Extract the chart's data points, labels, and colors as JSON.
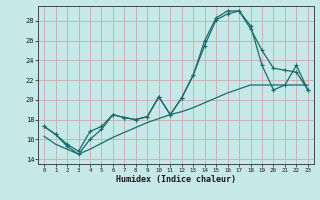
{
  "title": "",
  "xlabel": "Humidex (Indice chaleur)",
  "background_color": "#c6e8e8",
  "grid_color_major": "#c8a0a0",
  "grid_color_minor": "#ddc0c0",
  "line_color": "#1a6b6b",
  "xlim": [
    -0.5,
    23.5
  ],
  "ylim": [
    13.5,
    29.5
  ],
  "yticks": [
    14,
    16,
    18,
    20,
    22,
    24,
    26,
    28
  ],
  "xticks": [
    0,
    1,
    2,
    3,
    4,
    5,
    6,
    7,
    8,
    9,
    10,
    11,
    12,
    13,
    14,
    15,
    16,
    17,
    18,
    19,
    20,
    21,
    22,
    23
  ],
  "line1_x": [
    0,
    1,
    2,
    3,
    4,
    5,
    6,
    7,
    8,
    9,
    10,
    11,
    12,
    13,
    14,
    15,
    16,
    17,
    18,
    19,
    20,
    21,
    22,
    23
  ],
  "line1_y": [
    17.3,
    16.5,
    15.5,
    14.8,
    16.8,
    17.3,
    18.5,
    18.2,
    18.0,
    18.3,
    20.3,
    18.5,
    20.2,
    22.5,
    25.5,
    28.1,
    28.7,
    29.0,
    27.2,
    25.0,
    23.2,
    23.0,
    22.8,
    21.0
  ],
  "line2_x": [
    0,
    1,
    2,
    3,
    4,
    5,
    6,
    7,
    8,
    9,
    10,
    11,
    12,
    13,
    14,
    15,
    16,
    17,
    18,
    19,
    20,
    21,
    22,
    23
  ],
  "line2_y": [
    17.3,
    16.5,
    15.3,
    14.5,
    16.0,
    17.0,
    18.5,
    18.2,
    18.0,
    18.3,
    20.3,
    18.5,
    20.2,
    22.5,
    26.0,
    28.3,
    29.0,
    29.0,
    27.5,
    23.5,
    21.0,
    21.5,
    23.5,
    21.0
  ],
  "line3_x": [
    0,
    1,
    2,
    3,
    4,
    5,
    6,
    7,
    8,
    9,
    10,
    11,
    12,
    13,
    14,
    15,
    16,
    17,
    18,
    19,
    20,
    21,
    22,
    23
  ],
  "line3_y": [
    16.3,
    15.5,
    15.0,
    14.5,
    15.0,
    15.6,
    16.2,
    16.7,
    17.2,
    17.7,
    18.1,
    18.5,
    18.8,
    19.2,
    19.7,
    20.2,
    20.7,
    21.1,
    21.5,
    21.5,
    21.5,
    21.5,
    21.5,
    21.5
  ]
}
